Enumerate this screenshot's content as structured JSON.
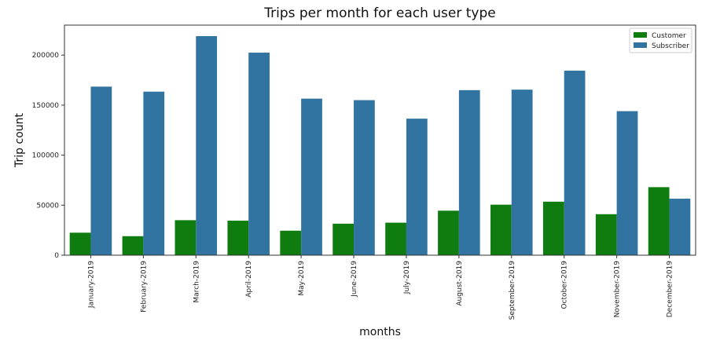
{
  "chart_data": {
    "type": "bar",
    "title": "Trips per month for each user type",
    "xlabel": "months",
    "ylabel": "Trip count",
    "categories": [
      "January-2019",
      "February-2019",
      "March-2019",
      "April-2019",
      "May-2019",
      "June-2019",
      "July-2019",
      "August-2019",
      "September-2019",
      "October-2019",
      "November-2019",
      "December-2019"
    ],
    "series": [
      {
        "name": "Customer",
        "color": "#0e7c0e",
        "values": [
          22500,
          19000,
          35000,
          34500,
          24500,
          31500,
          32500,
          44500,
          50500,
          53500,
          41000,
          68000
        ]
      },
      {
        "name": "Subscriber",
        "color": "#3274a1",
        "values": [
          168500,
          163500,
          219000,
          202500,
          156500,
          155000,
          136500,
          165000,
          165500,
          184500,
          144000,
          56500
        ]
      }
    ],
    "ylim": [
      0,
      230000
    ],
    "yticks": [
      0,
      50000,
      100000,
      150000,
      200000
    ],
    "ytick_labels": [
      "0",
      "50000",
      "100000",
      "150000",
      "200000"
    ],
    "grid": false,
    "legend_position": "top-right"
  }
}
